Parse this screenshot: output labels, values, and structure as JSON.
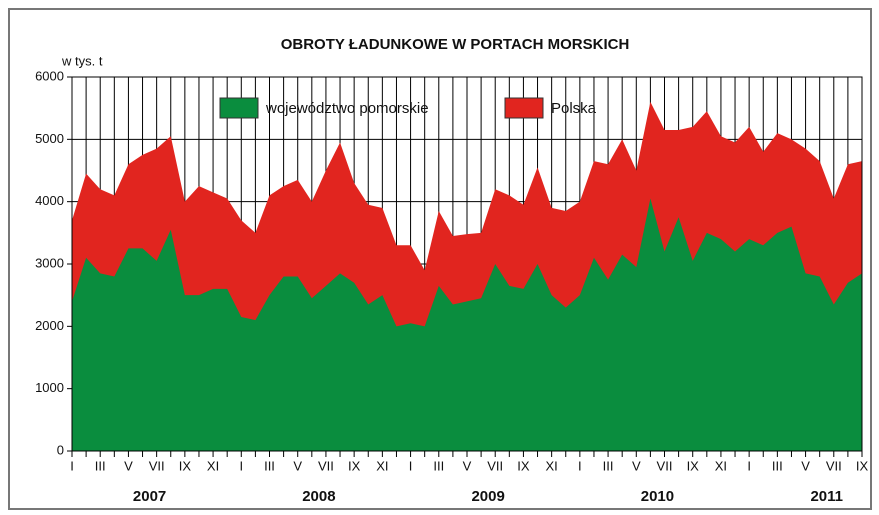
{
  "chart_data": {
    "type": "area",
    "title": "OBROTY ŁADUNKOWE W PORTACH MORSKICH",
    "y_label": "w tys. t",
    "categories": [
      "I",
      null,
      "III",
      null,
      "V",
      null,
      "VII",
      null,
      "IX",
      null,
      "XI",
      null,
      "I",
      null,
      "III",
      null,
      "V",
      null,
      "VII",
      null,
      "IX",
      null,
      "XI",
      null,
      "I",
      null,
      "III",
      null,
      "V",
      null,
      "VII",
      null,
      "IX",
      null,
      "XI",
      null,
      "I",
      null,
      "III",
      null,
      "V",
      null,
      "VII",
      null,
      "IX",
      null,
      "XI",
      null,
      "I",
      null,
      "III",
      null,
      "V",
      null,
      "VII",
      null,
      "IX"
    ],
    "year_labels": [
      "2007",
      "2008",
      "2009",
      "2010",
      "2011"
    ],
    "series": [
      {
        "name": "Polska",
        "color": "#e1251f",
        "values": [
          3700,
          4450,
          4200,
          4100,
          4600,
          4750,
          4850,
          5050,
          4000,
          4250,
          4150,
          4050,
          3700,
          3500,
          4100,
          4250,
          4350,
          4000,
          4500,
          4950,
          4300,
          3950,
          3900,
          3300,
          3300,
          2900,
          3850,
          3450,
          3480,
          3500,
          4200,
          4100,
          3950,
          4550,
          3900,
          3850,
          4000,
          4650,
          4600,
          5000,
          4500,
          5600,
          5150,
          5150,
          5200,
          5450,
          5050,
          4950,
          5200,
          4800,
          5100,
          5000,
          4850,
          4650,
          4050,
          4600,
          4650
        ]
      },
      {
        "name": "województwo pomorskie",
        "color": "#0a8d3e",
        "values": [
          2400,
          3100,
          2850,
          2800,
          3250,
          3250,
          3050,
          3550,
          2500,
          2500,
          2600,
          2600,
          2150,
          2100,
          2500,
          2800,
          2800,
          2450,
          2650,
          2850,
          2700,
          2350,
          2500,
          2000,
          2050,
          2000,
          2650,
          2350,
          2400,
          2450,
          3000,
          2650,
          2600,
          3000,
          2500,
          2300,
          2500,
          3100,
          2750,
          3150,
          2950,
          4050,
          3200,
          3750,
          3050,
          3500,
          3400,
          3200,
          3400,
          3300,
          3500,
          3600,
          2850,
          2800,
          2350,
          2700,
          2850
        ]
      }
    ],
    "legend_order": [
      1,
      0
    ],
    "ylim": [
      0,
      6000
    ],
    "yticks": [
      0,
      1000,
      2000,
      3000,
      4000,
      5000,
      6000
    ],
    "grid": true
  }
}
